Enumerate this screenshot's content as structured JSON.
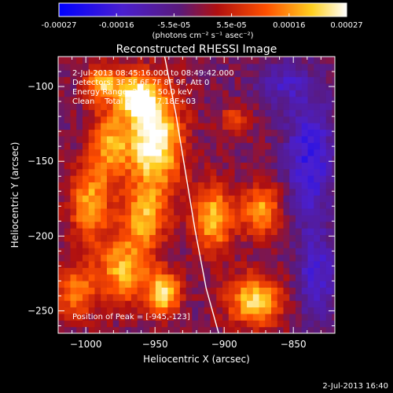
{
  "chart_data": {
    "type": "heatmap",
    "title": "Reconstructed RHESSI Image",
    "xlabel": "Heliocentric X (arcsec)",
    "ylabel": "Heliocentric Y (arcsec)",
    "xlim": [
      -1020,
      -820
    ],
    "ylim": [
      -265,
      -80
    ],
    "x_ticks": [
      -1000,
      -950,
      -900,
      -850
    ],
    "y_ticks": [
      -250,
      -200,
      -150,
      -100
    ],
    "colorbar": {
      "label": "(photons cm⁻² s⁻¹ asec⁻²)",
      "ticks": [
        "-0.00027",
        "-0.00016",
        "-5.5e-05",
        "5.5e-05",
        "0.00016",
        "0.00027"
      ],
      "range": [
        -0.00027,
        0.00027
      ],
      "colormap": "blue-purple-red-yellow-white"
    },
    "peak": [
      -945,
      -123
    ],
    "limb_curve": {
      "x": [
        -943,
        -935,
        -928,
        -921,
        -913,
        -904
      ],
      "y": [
        -80,
        -118,
        -157,
        -196,
        -235,
        -265
      ]
    },
    "hot_regions": [
      {
        "x": -953,
        "y": -138,
        "sx": 14,
        "sy": 24,
        "amp": 1.05
      },
      {
        "x": -965,
        "y": -108,
        "sx": 10,
        "sy": 10,
        "amp": 0.75
      },
      {
        "x": -990,
        "y": -100,
        "sx": 9,
        "sy": 8,
        "amp": 0.7
      },
      {
        "x": -985,
        "y": -140,
        "sx": 10,
        "sy": 18,
        "amp": 0.6
      },
      {
        "x": -1000,
        "y": -180,
        "sx": 10,
        "sy": 18,
        "amp": 0.65
      },
      {
        "x": -960,
        "y": -190,
        "sx": 12,
        "sy": 14,
        "amp": 0.6
      },
      {
        "x": -975,
        "y": -225,
        "sx": 14,
        "sy": 16,
        "amp": 0.7
      },
      {
        "x": -945,
        "y": -240,
        "sx": 8,
        "sy": 10,
        "amp": 0.85
      },
      {
        "x": -910,
        "y": -190,
        "sx": 10,
        "sy": 16,
        "amp": 0.75
      },
      {
        "x": -875,
        "y": -185,
        "sx": 10,
        "sy": 12,
        "amp": 0.65
      },
      {
        "x": -880,
        "y": -245,
        "sx": 14,
        "sy": 12,
        "amp": 0.8
      },
      {
        "x": -895,
        "y": -125,
        "sx": 7,
        "sy": 7,
        "amp": 0.45
      },
      {
        "x": -1010,
        "y": -240,
        "sx": 10,
        "sy": 12,
        "amp": 0.55
      }
    ],
    "cold_regions": [
      {
        "x": -840,
        "y": -150,
        "sx": 12,
        "sy": 30,
        "amp": 0.55
      },
      {
        "x": -835,
        "y": -230,
        "sx": 10,
        "sy": 20,
        "amp": 0.45
      },
      {
        "x": -860,
        "y": -100,
        "sx": 12,
        "sy": 10,
        "amp": 0.35
      }
    ]
  },
  "annotations": {
    "time_range": "2-Jul-2013 08:45:16.000 to 08:49:42.000",
    "detectors": "Detectors: 3F 5F 6F 7F 8F 9F, Att 0",
    "energy": "Energy Range: 25.0 - 50.0 keV",
    "clean": "Clean    Total counts: 7.18E+03",
    "peak_label": "Position of Peak = [-945,-123]"
  },
  "footer": {
    "timestamp": "2-Jul-2013 16:40"
  }
}
